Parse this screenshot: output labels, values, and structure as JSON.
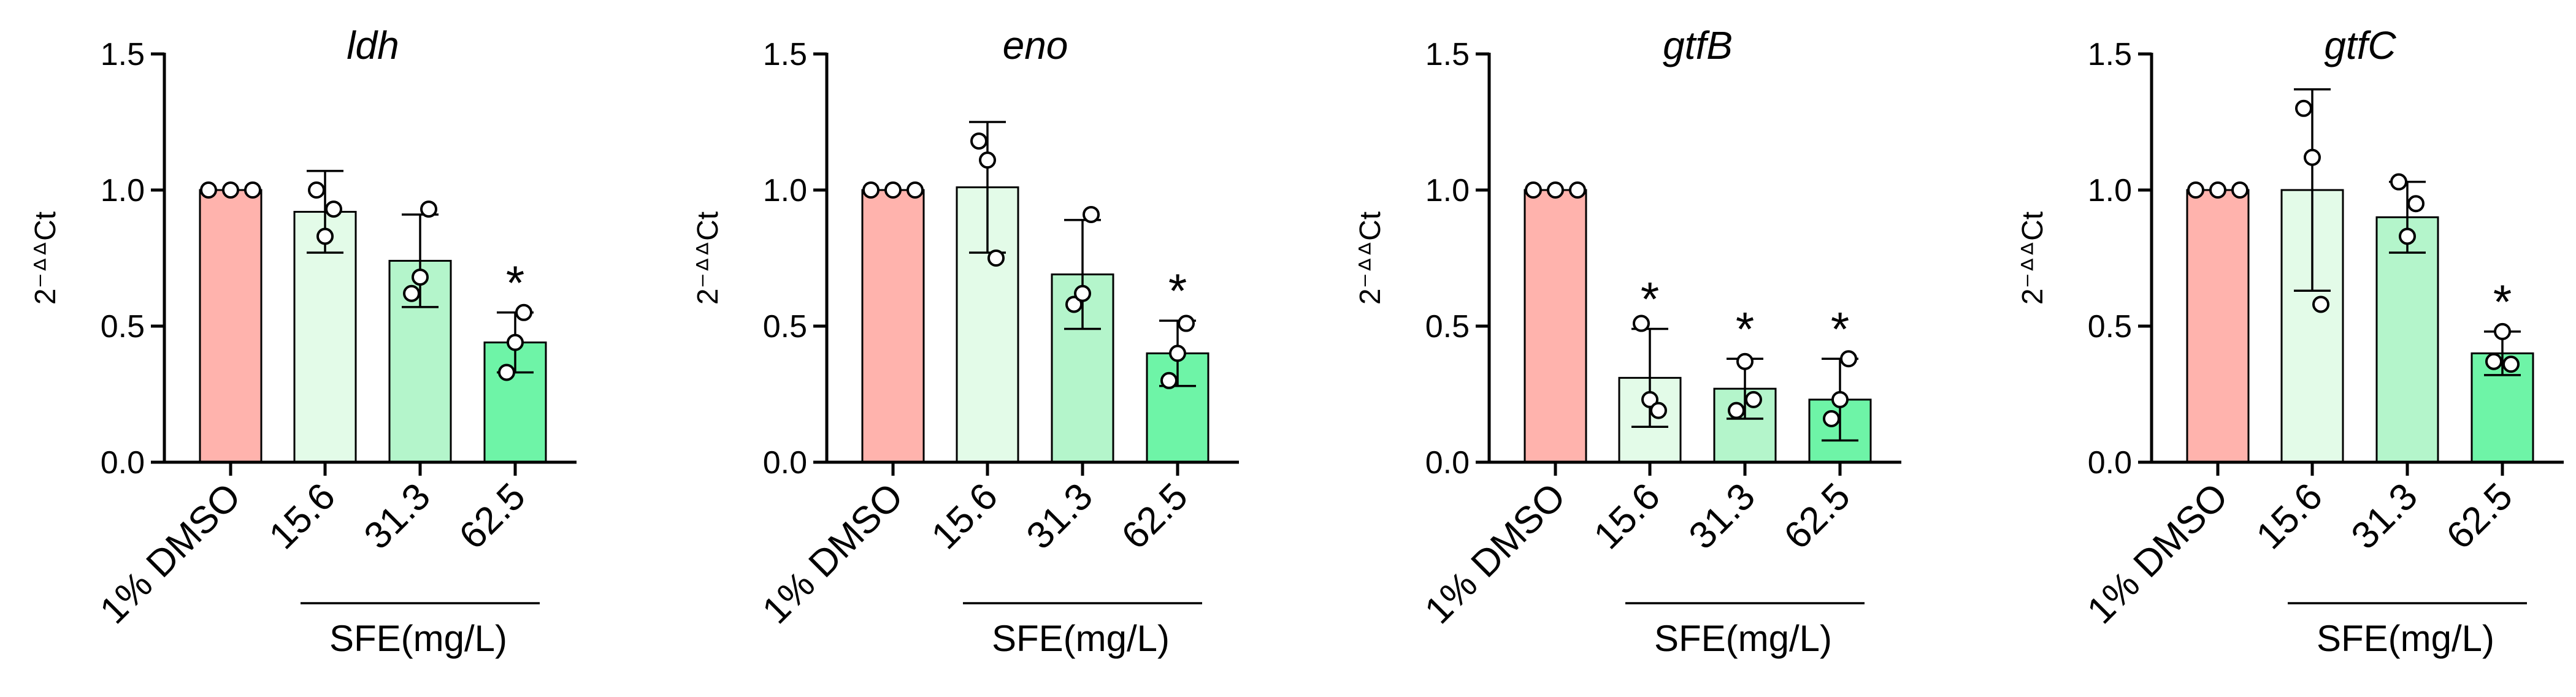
{
  "chart_data": [
    {
      "type": "bar",
      "title": "ldh",
      "ylabel": "2⁻ᐞᐞCt",
      "categories": [
        "1% DMSO",
        "15.6",
        "31.3",
        "62.5"
      ],
      "group_label": "SFE(mg/L)",
      "ylim": [
        0,
        1.5
      ],
      "yticks": [
        0.0,
        0.5,
        1.0,
        1.5
      ],
      "ytick_labels": [
        "0.0",
        "0.5",
        "1.0",
        "1.5"
      ],
      "values": [
        1.0,
        0.92,
        0.74,
        0.44
      ],
      "errors": [
        0.0,
        0.15,
        0.17,
        0.11
      ],
      "points": [
        [
          1.0,
          1.0,
          1.0
        ],
        [
          1.0,
          0.83,
          0.93
        ],
        [
          0.62,
          0.68,
          0.93
        ],
        [
          0.33,
          0.44,
          0.55
        ]
      ],
      "significance": [
        "",
        "",
        "",
        "*"
      ]
    },
    {
      "type": "bar",
      "title": "eno",
      "ylabel": "2⁻ᐞᐞCt",
      "categories": [
        "1% DMSO",
        "15.6",
        "31.3",
        "62.5"
      ],
      "group_label": "SFE(mg/L)",
      "ylim": [
        0,
        1.5
      ],
      "yticks": [
        0.0,
        0.5,
        1.0,
        1.5
      ],
      "ytick_labels": [
        "0.0",
        "0.5",
        "1.0",
        "1.5"
      ],
      "values": [
        1.0,
        1.01,
        0.69,
        0.4
      ],
      "errors": [
        0.0,
        0.24,
        0.2,
        0.12
      ],
      "points": [
        [
          1.0,
          1.0,
          1.0
        ],
        [
          1.18,
          1.11,
          0.75
        ],
        [
          0.58,
          0.62,
          0.91
        ],
        [
          0.3,
          0.4,
          0.51
        ]
      ],
      "significance": [
        "",
        "",
        "",
        "*"
      ]
    },
    {
      "type": "bar",
      "title": "gtfB",
      "ylabel": "2⁻ᐞᐞCt",
      "categories": [
        "1% DMSO",
        "15.6",
        "31.3",
        "62.5"
      ],
      "group_label": "SFE(mg/L)",
      "ylim": [
        0,
        1.5
      ],
      "yticks": [
        0.0,
        0.5,
        1.0,
        1.5
      ],
      "ytick_labels": [
        "0.0",
        "0.5",
        "1.0",
        "1.5"
      ],
      "values": [
        1.0,
        0.31,
        0.27,
        0.23
      ],
      "errors": [
        0.0,
        0.18,
        0.11,
        0.15
      ],
      "points": [
        [
          1.0,
          1.0,
          1.0
        ],
        [
          0.51,
          0.23,
          0.19
        ],
        [
          0.19,
          0.37,
          0.23
        ],
        [
          0.16,
          0.23,
          0.38
        ]
      ],
      "significance": [
        "",
        "*",
        "*",
        "*"
      ]
    },
    {
      "type": "bar",
      "title": "gtfC",
      "ylabel": "2⁻ᐞᐞCt",
      "categories": [
        "1% DMSO",
        "15.6",
        "31.3",
        "62.5"
      ],
      "group_label": "SFE(mg/L)",
      "ylim": [
        0,
        1.5
      ],
      "yticks": [
        0.0,
        0.5,
        1.0,
        1.5
      ],
      "ytick_labels": [
        "0.0",
        "0.5",
        "1.0",
        "1.5"
      ],
      "values": [
        1.0,
        1.0,
        0.9,
        0.4
      ],
      "errors": [
        0.0,
        0.37,
        0.13,
        0.08
      ],
      "points": [
        [
          1.0,
          1.0,
          1.0
        ],
        [
          1.3,
          1.12,
          0.58
        ],
        [
          1.03,
          0.83,
          0.95
        ],
        [
          0.37,
          0.48,
          0.36
        ]
      ],
      "significance": [
        "",
        "",
        "",
        "*"
      ]
    }
  ],
  "colors": {
    "bar_fills": [
      "#ffb3ad",
      "#e3fbe8",
      "#b4f5cb",
      "#6ef4a7"
    ],
    "axis": "#000000",
    "background": "#ffffff"
  }
}
